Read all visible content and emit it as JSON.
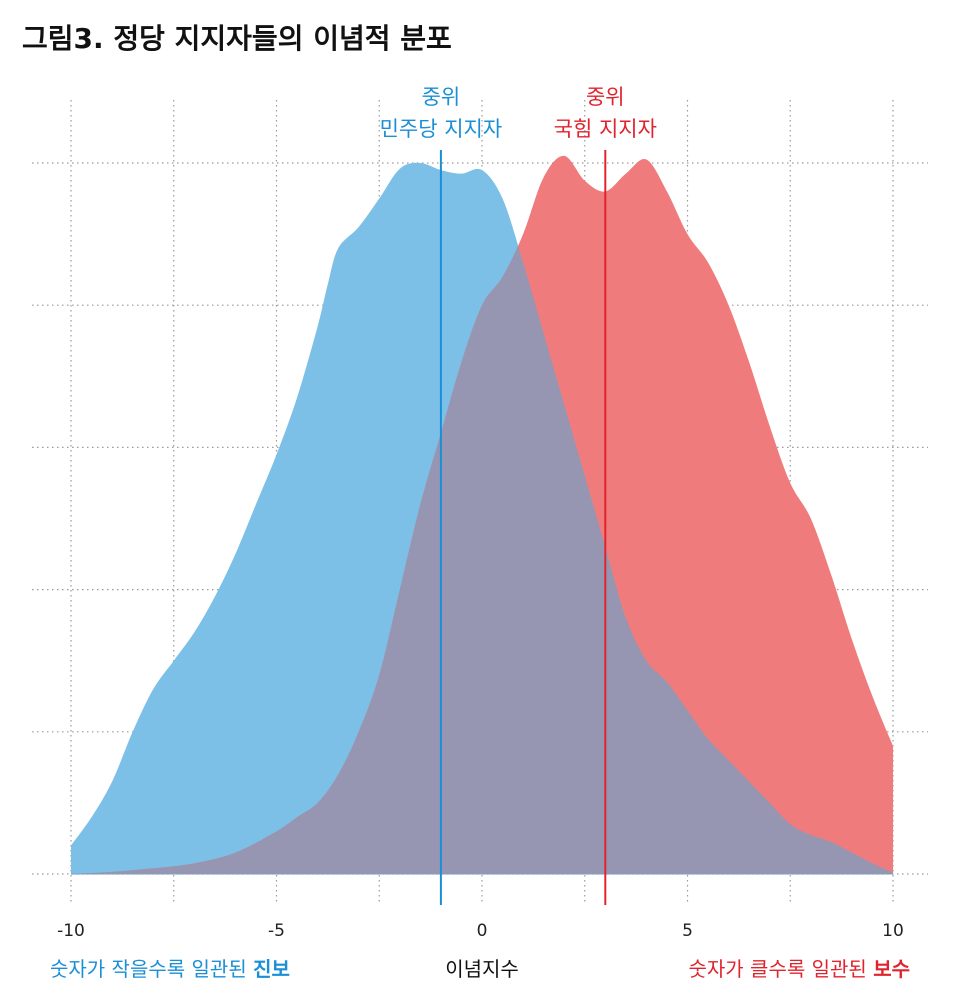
{
  "title": "그림3. 정당 지지자들의 이념적 분포",
  "colors": {
    "democratic": "#1a8fd6",
    "democratic_fill": "#7cc0e8",
    "ppp": "#e0242d",
    "ppp_fill": "#f07b7c",
    "overlap_fill": "#9696b2",
    "grid": "#9a9a9a",
    "text": "#111111"
  },
  "median_labels": {
    "democratic": {
      "line1": "중위",
      "line2": "민주당 지지자"
    },
    "ppp": {
      "line1": "중위",
      "line2": "국힘 지지자"
    }
  },
  "captions": {
    "left_prefix": "숫자가 작을수록 일관된 ",
    "left_bold": "진보",
    "center": "이념지수",
    "right_prefix": "숫자가 클수록 일관된 ",
    "right_bold": "보수"
  },
  "chart_data": {
    "type": "area",
    "title": "그림3. 정당 지지자들의 이념적 분포",
    "xlabel": "이념지수",
    "ylabel": "",
    "xlim": [
      -10,
      10
    ],
    "ylim": [
      0,
      1
    ],
    "x_ticks": [
      -10,
      -5,
      0,
      5,
      10
    ],
    "x_tick_labels": [
      "-10",
      "-5",
      "0",
      "5",
      "10"
    ],
    "x_grid": [
      -10,
      -7.5,
      -5,
      -2.5,
      0,
      2.5,
      5,
      7.5,
      10
    ],
    "y_grid": [
      0,
      0.2,
      0.4,
      0.6,
      0.8,
      1.0
    ],
    "grid": true,
    "grid_style": "dotted",
    "series": [
      {
        "key": "democratic",
        "x": [
          -10,
          -9.5,
          -9,
          -8.5,
          -8,
          -7.5,
          -7,
          -6.5,
          -6,
          -5.5,
          -5,
          -4.5,
          -4,
          -3.75,
          -3.5,
          -3,
          -2.5,
          -2,
          -1.5,
          -1,
          -0.5,
          0,
          0.5,
          1,
          1.5,
          2,
          2.5,
          3,
          3.5,
          4,
          4.5,
          5,
          5.5,
          6,
          6.5,
          7,
          7.5,
          8,
          8.5,
          9,
          9.5,
          10
        ],
        "y": [
          0.04,
          0.08,
          0.13,
          0.2,
          0.26,
          0.3,
          0.34,
          0.39,
          0.45,
          0.52,
          0.59,
          0.67,
          0.77,
          0.83,
          0.88,
          0.91,
          0.95,
          0.992,
          1.0,
          0.99,
          0.985,
          0.99,
          0.95,
          0.86,
          0.76,
          0.66,
          0.56,
          0.46,
          0.36,
          0.3,
          0.27,
          0.23,
          0.19,
          0.16,
          0.13,
          0.1,
          0.07,
          0.055,
          0.045,
          0.03,
          0.015,
          0.002
        ]
      },
      {
        "key": "ppp",
        "x": [
          -10,
          -9,
          -8,
          -7,
          -6,
          -5,
          -4.5,
          -4,
          -3.5,
          -3,
          -2.5,
          -2,
          -1.5,
          -1,
          -0.5,
          0,
          0.5,
          1,
          1.5,
          2,
          2.5,
          3,
          3.5,
          4,
          4.5,
          5,
          5.5,
          6,
          6.5,
          7,
          7.5,
          8,
          8.5,
          9,
          9.5,
          10
        ],
        "y": [
          0,
          0.003,
          0.008,
          0.015,
          0.03,
          0.06,
          0.08,
          0.1,
          0.14,
          0.2,
          0.28,
          0.4,
          0.52,
          0.62,
          0.72,
          0.8,
          0.84,
          0.9,
          0.98,
          1.01,
          0.975,
          0.96,
          0.985,
          1.005,
          0.96,
          0.9,
          0.86,
          0.8,
          0.72,
          0.63,
          0.55,
          0.5,
          0.42,
          0.33,
          0.25,
          0.18
        ]
      }
    ],
    "medians": [
      {
        "key": "democratic",
        "x": -1
      },
      {
        "key": "ppp",
        "x": 3
      }
    ]
  }
}
